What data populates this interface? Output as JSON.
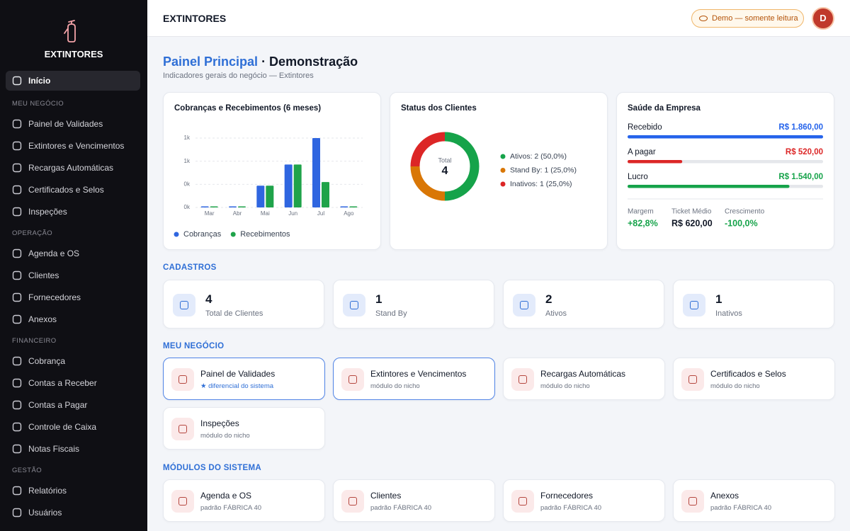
{
  "sidebar": {
    "brand": "EXTINTORES",
    "home": "Início",
    "sections": [
      {
        "title": "MEU NEGÓCIO",
        "items": [
          "Painel de Validades",
          "Extintores e Vencimentos",
          "Recargas Automáticas",
          "Certificados e Selos",
          "Inspeções"
        ]
      },
      {
        "title": "OPERAÇÃO",
        "items": [
          "Agenda e OS",
          "Clientes",
          "Fornecedores",
          "Anexos"
        ]
      },
      {
        "title": "FINANCEIRO",
        "items": [
          "Cobrança",
          "Contas a Receber",
          "Contas a Pagar",
          "Controle de Caixa",
          "Notas Fiscais"
        ]
      },
      {
        "title": "GESTÃO",
        "items": [
          "Relatórios",
          "Usuários"
        ]
      }
    ]
  },
  "header": {
    "title": "EXTINTORES",
    "badge": "Demo — somente leitura",
    "avatar": "D"
  },
  "page": {
    "title_accent": "Painel Principal",
    "title_rest": "· Demonstração",
    "subtitle": "Indicadores gerais do negócio — Extintores"
  },
  "chart_data": [
    {
      "type": "bar",
      "title": "Cobranças e Recebimentos (6 meses)",
      "categories": [
        "Mar",
        "Abr",
        "Mai",
        "Jun",
        "Jul",
        "Ago"
      ],
      "series": [
        {
          "name": "Cobranças",
          "color": "#2f66e0",
          "values": [
            0,
            0,
            330,
            650,
            1050,
            0
          ]
        },
        {
          "name": "Recebimentos",
          "color": "#1fa34a",
          "values": [
            0,
            0,
            330,
            650,
            385,
            0
          ]
        }
      ],
      "ylim": [
        0,
        1050
      ],
      "yticks": [
        {
          "value": 0,
          "label": "0k"
        },
        {
          "value": 350,
          "label": "0k"
        },
        {
          "value": 700,
          "label": "1k"
        },
        {
          "value": 1050,
          "label": "1k"
        }
      ],
      "grid": true
    },
    {
      "type": "pie",
      "title": "Status dos Clientes",
      "center_label": "Total",
      "total": 4,
      "categories": [
        "Ativos: 2 (50,0%)",
        "Stand By: 1 (25,0%)",
        "Inativos: 1 (25,0%)"
      ],
      "values": [
        2,
        1,
        1
      ],
      "colors": [
        "#16a34a",
        "#d97706",
        "#dc2626"
      ]
    }
  ],
  "health": {
    "title": "Saúde da Empresa",
    "rows": [
      {
        "label": "Recebido",
        "value": 1860,
        "value_label": "R$ 1.860,00",
        "color": "#2563eb"
      },
      {
        "label": "A pagar",
        "value": 520,
        "value_label": "R$ 520,00",
        "color": "#dc2626"
      },
      {
        "label": "Lucro",
        "value": 1540,
        "value_label": "R$ 1.540,00",
        "color": "#16a34a"
      }
    ],
    "metrics": [
      {
        "label": "Margem",
        "value": "+82,8%",
        "color": "#16a34a"
      },
      {
        "label": "Ticket Médio",
        "value": "R$ 620,00",
        "color": "#111827"
      },
      {
        "label": "Crescimento",
        "value": "-100,0%",
        "color": "#16a34a"
      }
    ]
  },
  "cadastros": {
    "title": "CADASTROS",
    "cards": [
      {
        "value": 4,
        "label": "Total de Clientes"
      },
      {
        "value": 1,
        "label": "Stand By"
      },
      {
        "value": 2,
        "label": "Ativos"
      },
      {
        "value": 1,
        "label": "Inativos"
      }
    ]
  },
  "meu_negocio": {
    "title": "MEU NEGÓCIO",
    "cards": [
      {
        "title": "Painel de Validades",
        "sub": "★ diferencial do sistema"
      },
      {
        "title": "Extintores e Vencimentos",
        "sub": "módulo do nicho"
      },
      {
        "title": "Recargas Automáticas",
        "sub": "módulo do nicho"
      },
      {
        "title": "Certificados e Selos",
        "sub": "módulo do nicho"
      },
      {
        "title": "Inspeções",
        "sub": "módulo do nicho"
      }
    ]
  },
  "modulos": {
    "title": "MÓDULOS DO SISTEMA",
    "cards": [
      {
        "title": "Agenda e OS",
        "sub": "padrão FÁBRICA 40"
      },
      {
        "title": "Clientes",
        "sub": "padrão FÁBRICA 40"
      },
      {
        "title": "Fornecedores",
        "sub": "padrão FÁBRICA 40"
      },
      {
        "title": "Anexos",
        "sub": "padrão FÁBRICA 40"
      }
    ]
  }
}
